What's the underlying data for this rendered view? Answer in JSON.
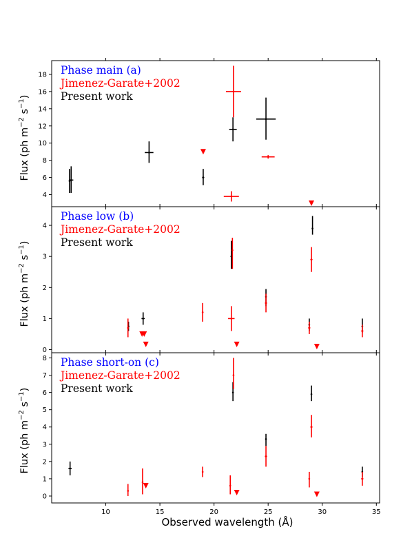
{
  "figure": {
    "xlabel": "Observed wavelength (Å)",
    "ylabel_main": "Flux (ph m",
    "ylabel_sup1": "−2",
    "ylabel_mid": " s",
    "ylabel_sup2": "−1",
    "ylabel_end": ")"
  },
  "colors": {
    "present": "#000000",
    "jimenez": "#ff0000",
    "phase_title": "#0000ff"
  },
  "chart_data": [
    {
      "type": "scatter",
      "panel": "a",
      "legend": {
        "title": "Phase main (a)",
        "series1": "Jimenez-Garate+2002",
        "series2": "Present work"
      },
      "xlim": [
        5,
        35.3
      ],
      "ylim": [
        2.6,
        19.6
      ],
      "xticks": [
        10,
        15,
        20,
        25,
        30,
        35
      ],
      "yticks": [
        4,
        6,
        8,
        10,
        12,
        14,
        16,
        18
      ],
      "series": [
        {
          "name": "Present work",
          "color": "#000000",
          "points": [
            {
              "x": 6.65,
              "y": 5.6,
              "ylo": 4.2,
              "yhi": 7.0,
              "xerr": 0
            },
            {
              "x": 6.8,
              "y": 5.7,
              "ylo": 4.2,
              "yhi": 7.3,
              "xerr": 0.2
            },
            {
              "x": 14.0,
              "y": 8.9,
              "ylo": 7.7,
              "yhi": 10.2,
              "xerr": 0.4
            },
            {
              "x": 19.0,
              "y": 6.0,
              "ylo": 5.1,
              "yhi": 7.0,
              "xerr": 0.1
            },
            {
              "x": 21.75,
              "y": 11.6,
              "ylo": 10.2,
              "yhi": 13.0,
              "xerr": 0.35
            },
            {
              "x": 24.8,
              "y": 12.8,
              "ylo": 10.4,
              "yhi": 15.3,
              "xerr": 0.9
            }
          ]
        },
        {
          "name": "Jimenez-Garate+2002",
          "color": "#ff0000",
          "points": [
            {
              "x": 21.6,
              "y": 3.8,
              "ylo": 3.2,
              "yhi": 4.4,
              "xerr": 0.7
            },
            {
              "x": 21.8,
              "y": 16.0,
              "ylo": 13.0,
              "yhi": 19.0,
              "xerr": 0.7
            },
            {
              "x": 25.0,
              "y": 8.4,
              "ylo": 8.2,
              "yhi": 8.6,
              "xerr": 0.6
            }
          ],
          "upper_limits": [
            {
              "x": 19.0,
              "y": 9.0
            },
            {
              "x": 29.0,
              "y": 3.0
            }
          ]
        }
      ]
    },
    {
      "type": "scatter",
      "panel": "b",
      "legend": {
        "title": "Phase low (b)",
        "series1": "Jimenez-Garate+2002",
        "series2": "Present work"
      },
      "xlim": [
        5,
        35.3
      ],
      "ylim": [
        -0.1,
        4.6
      ],
      "xticks": [
        10,
        15,
        20,
        25,
        30,
        35
      ],
      "yticks": [
        0,
        1,
        2,
        3,
        4
      ],
      "series": [
        {
          "name": "Present work",
          "color": "#000000",
          "points": [
            {
              "x": 12.1,
              "y": 0.75,
              "ylo": 0.6,
              "yhi": 0.9,
              "xerr": 0
            },
            {
              "x": 13.45,
              "y": 1.0,
              "ylo": 0.8,
              "yhi": 1.2,
              "xerr": 0.15
            },
            {
              "x": 21.6,
              "y": 3.0,
              "ylo": 2.6,
              "yhi": 3.5,
              "xerr": 0
            },
            {
              "x": 24.8,
              "y": 1.7,
              "ylo": 1.4,
              "yhi": 1.95,
              "xerr": 0
            },
            {
              "x": 28.8,
              "y": 0.8,
              "ylo": 0.6,
              "yhi": 1.0,
              "xerr": 0
            },
            {
              "x": 29.1,
              "y": 3.9,
              "ylo": 3.7,
              "yhi": 4.3,
              "xerr": 0
            },
            {
              "x": 33.7,
              "y": 0.75,
              "ylo": 0.55,
              "yhi": 1.0,
              "xerr": 0
            }
          ]
        },
        {
          "name": "Jimenez-Garate+2002",
          "color": "#ff0000",
          "points": [
            {
              "x": 12.05,
              "y": 0.7,
              "ylo": 0.4,
              "yhi": 1.0,
              "xerr": 0
            },
            {
              "x": 18.95,
              "y": 1.2,
              "ylo": 0.9,
              "yhi": 1.5,
              "xerr": 0.05
            },
            {
              "x": 21.6,
              "y": 1.0,
              "ylo": 0.6,
              "yhi": 1.4,
              "xerr": 0.3
            },
            {
              "x": 21.7,
              "y": 3.2,
              "ylo": 2.6,
              "yhi": 3.6,
              "xerr": 0
            },
            {
              "x": 24.8,
              "y": 1.5,
              "ylo": 1.2,
              "yhi": 1.8,
              "xerr": 0.1
            },
            {
              "x": 28.8,
              "y": 0.7,
              "ylo": 0.5,
              "yhi": 0.9,
              "xerr": 0.1
            },
            {
              "x": 29.0,
              "y": 2.9,
              "ylo": 2.5,
              "yhi": 3.3,
              "xerr": 0.1
            },
            {
              "x": 33.7,
              "y": 0.6,
              "ylo": 0.4,
              "yhi": 0.8,
              "xerr": 0.1
            }
          ],
          "upper_limits": [
            {
              "x": 13.35,
              "y": 0.5
            },
            {
              "x": 13.55,
              "y": 0.5
            },
            {
              "x": 13.7,
              "y": 0.17
            },
            {
              "x": 22.1,
              "y": 0.17
            },
            {
              "x": 29.5,
              "y": 0.1
            }
          ]
        }
      ]
    },
    {
      "type": "scatter",
      "panel": "c",
      "legend": {
        "title": "Phase short-on (c)",
        "series1": "Jimenez-Garate+2002",
        "series2": "Present work"
      },
      "xlim": [
        5,
        35.3
      ],
      "ylim": [
        -0.4,
        8.3
      ],
      "xticks": [
        10,
        15,
        20,
        25,
        30,
        35
      ],
      "yticks": [
        0,
        1,
        2,
        3,
        4,
        5,
        6,
        7,
        8
      ],
      "series": [
        {
          "name": "Present work",
          "color": "#000000",
          "points": [
            {
              "x": 6.7,
              "y": 1.6,
              "ylo": 1.2,
              "yhi": 2.0,
              "xerr": 0.15
            },
            {
              "x": 21.75,
              "y": 6.0,
              "ylo": 5.5,
              "yhi": 6.6,
              "xerr": 0
            },
            {
              "x": 24.8,
              "y": 3.3,
              "ylo": 2.9,
              "yhi": 3.6,
              "xerr": 0
            },
            {
              "x": 29.0,
              "y": 5.9,
              "ylo": 5.5,
              "yhi": 6.4,
              "xerr": 0
            },
            {
              "x": 33.7,
              "y": 1.4,
              "ylo": 1.1,
              "yhi": 1.7,
              "xerr": 0
            }
          ]
        },
        {
          "name": "Jimenez-Garate+2002",
          "color": "#ff0000",
          "points": [
            {
              "x": 12.05,
              "y": 0.3,
              "ylo": 0.0,
              "yhi": 0.7,
              "xerr": 0
            },
            {
              "x": 13.4,
              "y": 0.8,
              "ylo": 0.1,
              "yhi": 1.6,
              "xerr": 0
            },
            {
              "x": 18.95,
              "y": 1.4,
              "ylo": 1.1,
              "yhi": 1.7,
              "xerr": 0.05
            },
            {
              "x": 21.5,
              "y": 0.6,
              "ylo": 0.1,
              "yhi": 1.2,
              "xerr": 0
            },
            {
              "x": 21.8,
              "y": 7.0,
              "ylo": 6.2,
              "yhi": 8.0,
              "xerr": 0
            },
            {
              "x": 24.8,
              "y": 2.3,
              "ylo": 1.7,
              "yhi": 2.9,
              "xerr": 0.1
            },
            {
              "x": 28.8,
              "y": 1.0,
              "ylo": 0.5,
              "yhi": 1.4,
              "xerr": 0
            },
            {
              "x": 29.0,
              "y": 4.0,
              "ylo": 3.4,
              "yhi": 4.7,
              "xerr": 0.1
            },
            {
              "x": 33.7,
              "y": 1.0,
              "ylo": 0.6,
              "yhi": 1.4,
              "xerr": 0.1
            }
          ],
          "upper_limits": [
            {
              "x": 13.7,
              "y": 0.6
            },
            {
              "x": 22.1,
              "y": 0.2
            },
            {
              "x": 29.5,
              "y": 0.1
            }
          ]
        }
      ]
    }
  ]
}
